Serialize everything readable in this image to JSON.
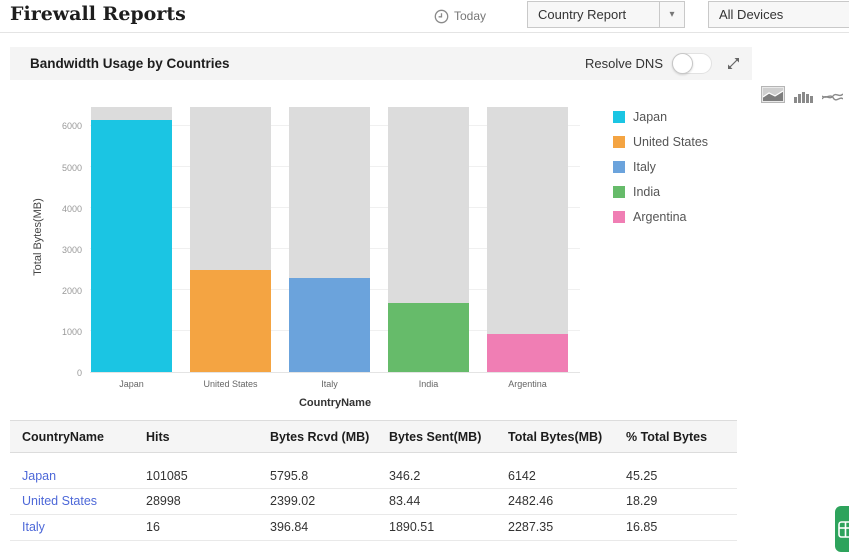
{
  "page": {
    "title": "Firewall Reports"
  },
  "toolbar": {
    "time_filter": "Today",
    "report_select": "Country Report",
    "device_select": "All Devices"
  },
  "panel": {
    "title": "Bandwidth Usage by Countries",
    "resolve_dns_label": "Resolve DNS",
    "resolve_dns_state": "off"
  },
  "chart_switcher": {
    "options": [
      "area-chart",
      "bar-chart",
      "line-chart"
    ],
    "selected": "area-chart"
  },
  "chart_data": {
    "type": "bar",
    "title": "Bandwidth Usage by Countries",
    "xlabel": "CountryName",
    "ylabel": "Total Bytes(MB)",
    "ylim": [
      0,
      6450
    ],
    "yticks": [
      0,
      1000,
      2000,
      3000,
      4000,
      5000,
      6000
    ],
    "grid": true,
    "legend_position": "right",
    "categories": [
      "Japan",
      "United States",
      "Italy",
      "India",
      "Argentina"
    ],
    "values": [
      6142,
      2482.46,
      2287.35,
      1690,
      930
    ],
    "colors": [
      "#1bc5e3",
      "#f4a442",
      "#6ba3dc",
      "#66bb6a",
      "#f07eb4"
    ],
    "track_color": "#dcdcdc",
    "note": "gray track bars span full axis height behind each colored bar"
  },
  "table": {
    "columns": [
      "CountryName",
      "Hits",
      "Bytes Rcvd (MB)",
      "Bytes Sent(MB)",
      "Total Bytes(MB)",
      "% Total Bytes"
    ],
    "rows": [
      [
        "Japan",
        "101085",
        "5795.8",
        "346.2",
        "6142",
        "45.25"
      ],
      [
        "United States",
        "28998",
        "2399.02",
        "83.44",
        "2482.46",
        "18.29"
      ],
      [
        "Italy",
        "16",
        "396.84",
        "1890.51",
        "2287.35",
        "16.85"
      ]
    ]
  }
}
